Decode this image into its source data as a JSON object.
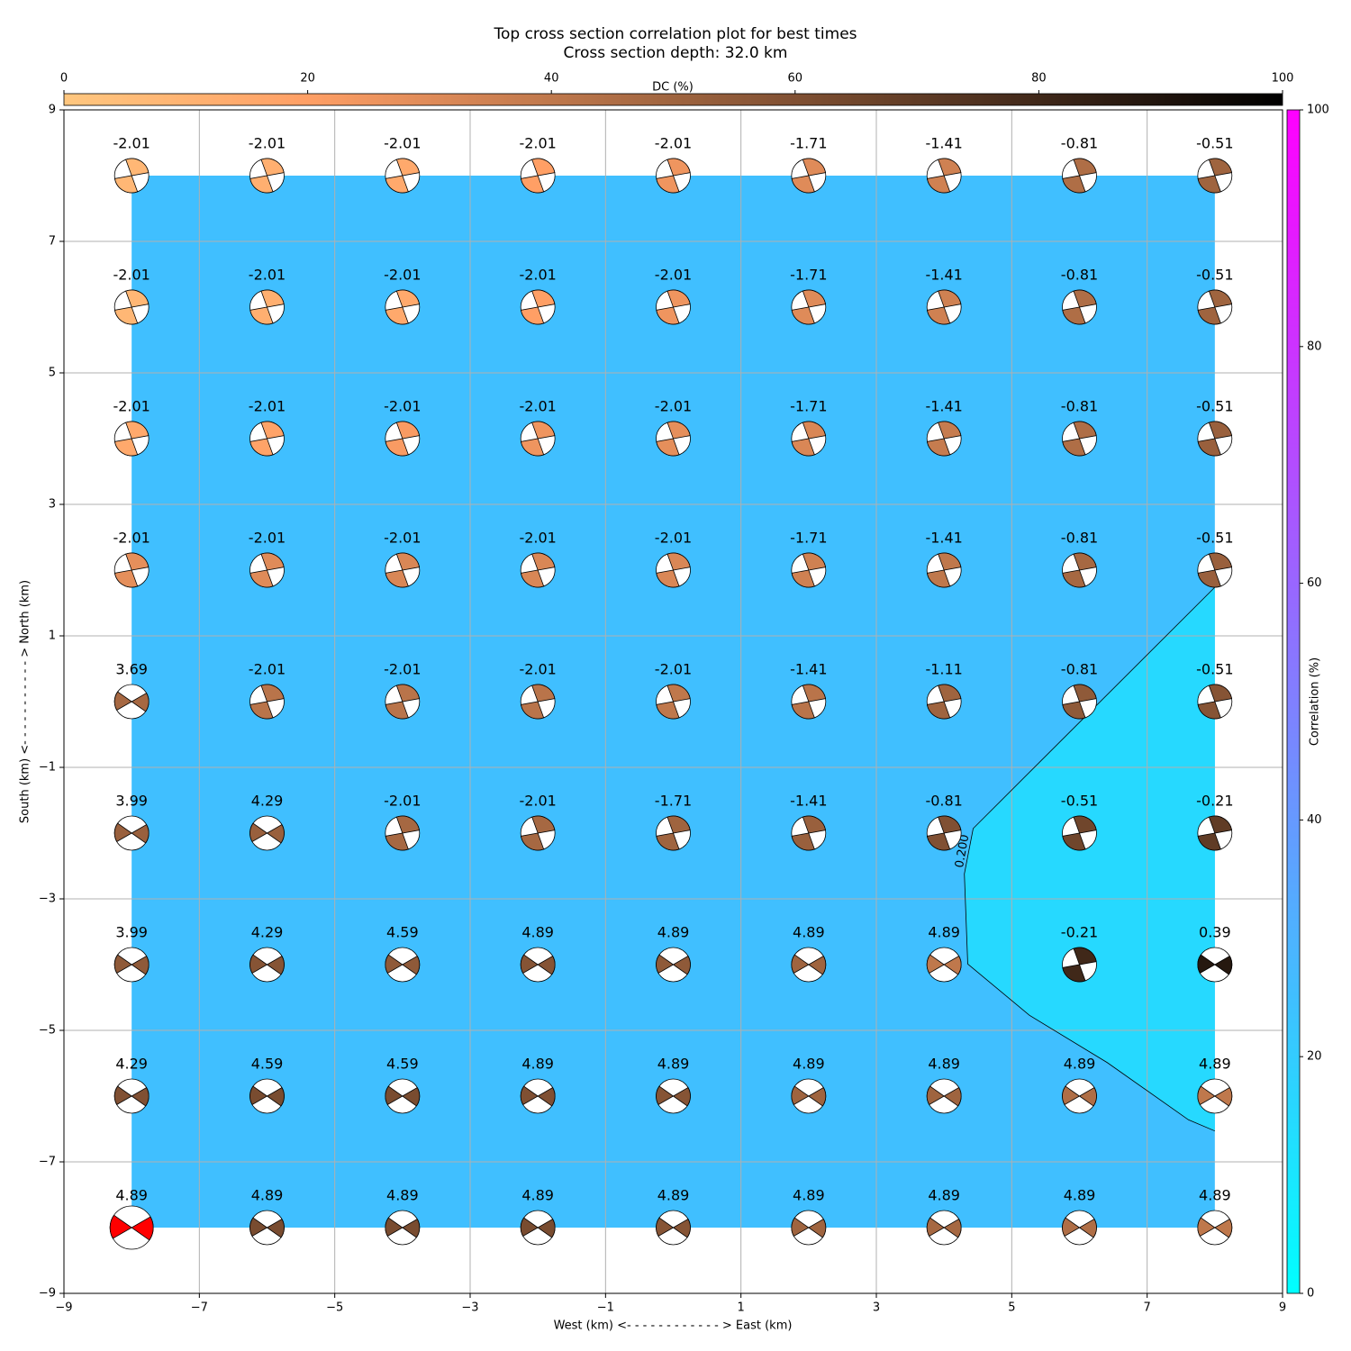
{
  "chart_data": {
    "type": "beachball_grid",
    "title": "Top cross section correlation plot for best times",
    "subtitle": "Cross section depth: 32.0 km",
    "xlabel": "West (km) <- - - - - - - - - - - - > East (km)",
    "ylabel": "South (km) <- - - - - - - - - - - > North (km)",
    "xlim": [
      -9,
      9
    ],
    "ylim": [
      -9,
      9
    ],
    "xticks": [
      {
        "value": -9,
        "label": "−9"
      },
      {
        "value": -7,
        "label": "−7"
      },
      {
        "value": -5,
        "label": "−5"
      },
      {
        "value": -3,
        "label": "−3"
      },
      {
        "value": -1,
        "label": "−1"
      },
      1,
      3,
      5,
      7,
      9
    ],
    "yticks": [
      {
        "value": -9,
        "label": "−9"
      },
      {
        "value": -7,
        "label": "−7"
      },
      {
        "value": -5,
        "label": "−5"
      },
      {
        "value": -3,
        "label": "−3"
      },
      {
        "value": -1,
        "label": "−1"
      },
      1,
      3,
      5,
      7,
      9
    ],
    "grid": true,
    "x": [
      -8,
      -6,
      -4,
      -2,
      0,
      2,
      4,
      6,
      8
    ],
    "y": [
      8,
      6,
      4,
      2,
      0,
      -2,
      -4,
      -6,
      -8
    ],
    "labels": [
      [
        -2.01,
        -2.01,
        -2.01,
        -2.01,
        -2.01,
        -1.71,
        -1.41,
        -0.81,
        -0.51
      ],
      [
        -2.01,
        -2.01,
        -2.01,
        -2.01,
        -2.01,
        -1.71,
        -1.41,
        -0.81,
        -0.51
      ],
      [
        -2.01,
        -2.01,
        -2.01,
        -2.01,
        -2.01,
        -1.71,
        -1.41,
        -0.81,
        -0.51
      ],
      [
        -2.01,
        -2.01,
        -2.01,
        -2.01,
        -2.01,
        -1.71,
        -1.41,
        -0.81,
        -0.51
      ],
      [
        3.69,
        -2.01,
        -2.01,
        -2.01,
        -2.01,
        -1.41,
        -1.11,
        -0.81,
        -0.51
      ],
      [
        3.99,
        4.29,
        -2.01,
        -2.01,
        -1.71,
        -1.41,
        -0.81,
        -0.51,
        -0.21
      ],
      [
        3.99,
        4.29,
        4.59,
        4.89,
        4.89,
        4.89,
        4.89,
        -0.21,
        0.39
      ],
      [
        4.29,
        4.59,
        4.59,
        4.89,
        4.89,
        4.89,
        4.89,
        4.89,
        4.89
      ],
      [
        4.89,
        4.89,
        4.89,
        4.89,
        4.89,
        4.89,
        4.89,
        4.89,
        4.89
      ]
    ],
    "dc": [
      [
        8,
        12,
        15,
        20,
        25,
        30,
        35,
        45,
        50
      ],
      [
        8,
        12,
        15,
        20,
        25,
        30,
        35,
        45,
        50
      ],
      [
        15,
        18,
        22,
        25,
        28,
        32,
        38,
        45,
        52
      ],
      [
        28,
        30,
        32,
        32,
        32,
        35,
        40,
        48,
        52
      ],
      [
        48,
        42,
        42,
        42,
        40,
        42,
        50,
        55,
        58
      ],
      [
        52,
        52,
        48,
        48,
        50,
        52,
        60,
        65,
        70
      ],
      [
        55,
        58,
        55,
        58,
        55,
        50,
        40,
        80,
        88
      ],
      [
        60,
        62,
        62,
        60,
        58,
        50,
        50,
        45,
        40
      ],
      [
        60,
        62,
        62,
        62,
        58,
        50,
        48,
        45,
        40
      ]
    ],
    "best": {
      "row": 8,
      "col": 0,
      "color": "#ff0000"
    },
    "field": {
      "values": [
        25,
        15
      ],
      "contour": {
        "label": "0.200",
        "x": [
          8.0,
          4.43,
          4.3,
          4.35,
          5.26,
          6.41,
          7.61,
          8.0
        ],
        "y": [
          1.74,
          -1.93,
          -2.62,
          -3.99,
          -4.77,
          -5.49,
          -6.36,
          -6.53
        ]
      }
    },
    "dc_colorbar": {
      "label": "DC (%)",
      "lim": [
        0,
        100
      ],
      "ticks": [
        0,
        20,
        40,
        60,
        80,
        100
      ],
      "cmap": "copper_r"
    },
    "corr_colorbar": {
      "label": "Correlation (%)",
      "lim": [
        0,
        100
      ],
      "ticks": [
        0,
        20,
        40,
        60,
        80,
        100
      ],
      "cmap": "cool"
    }
  }
}
